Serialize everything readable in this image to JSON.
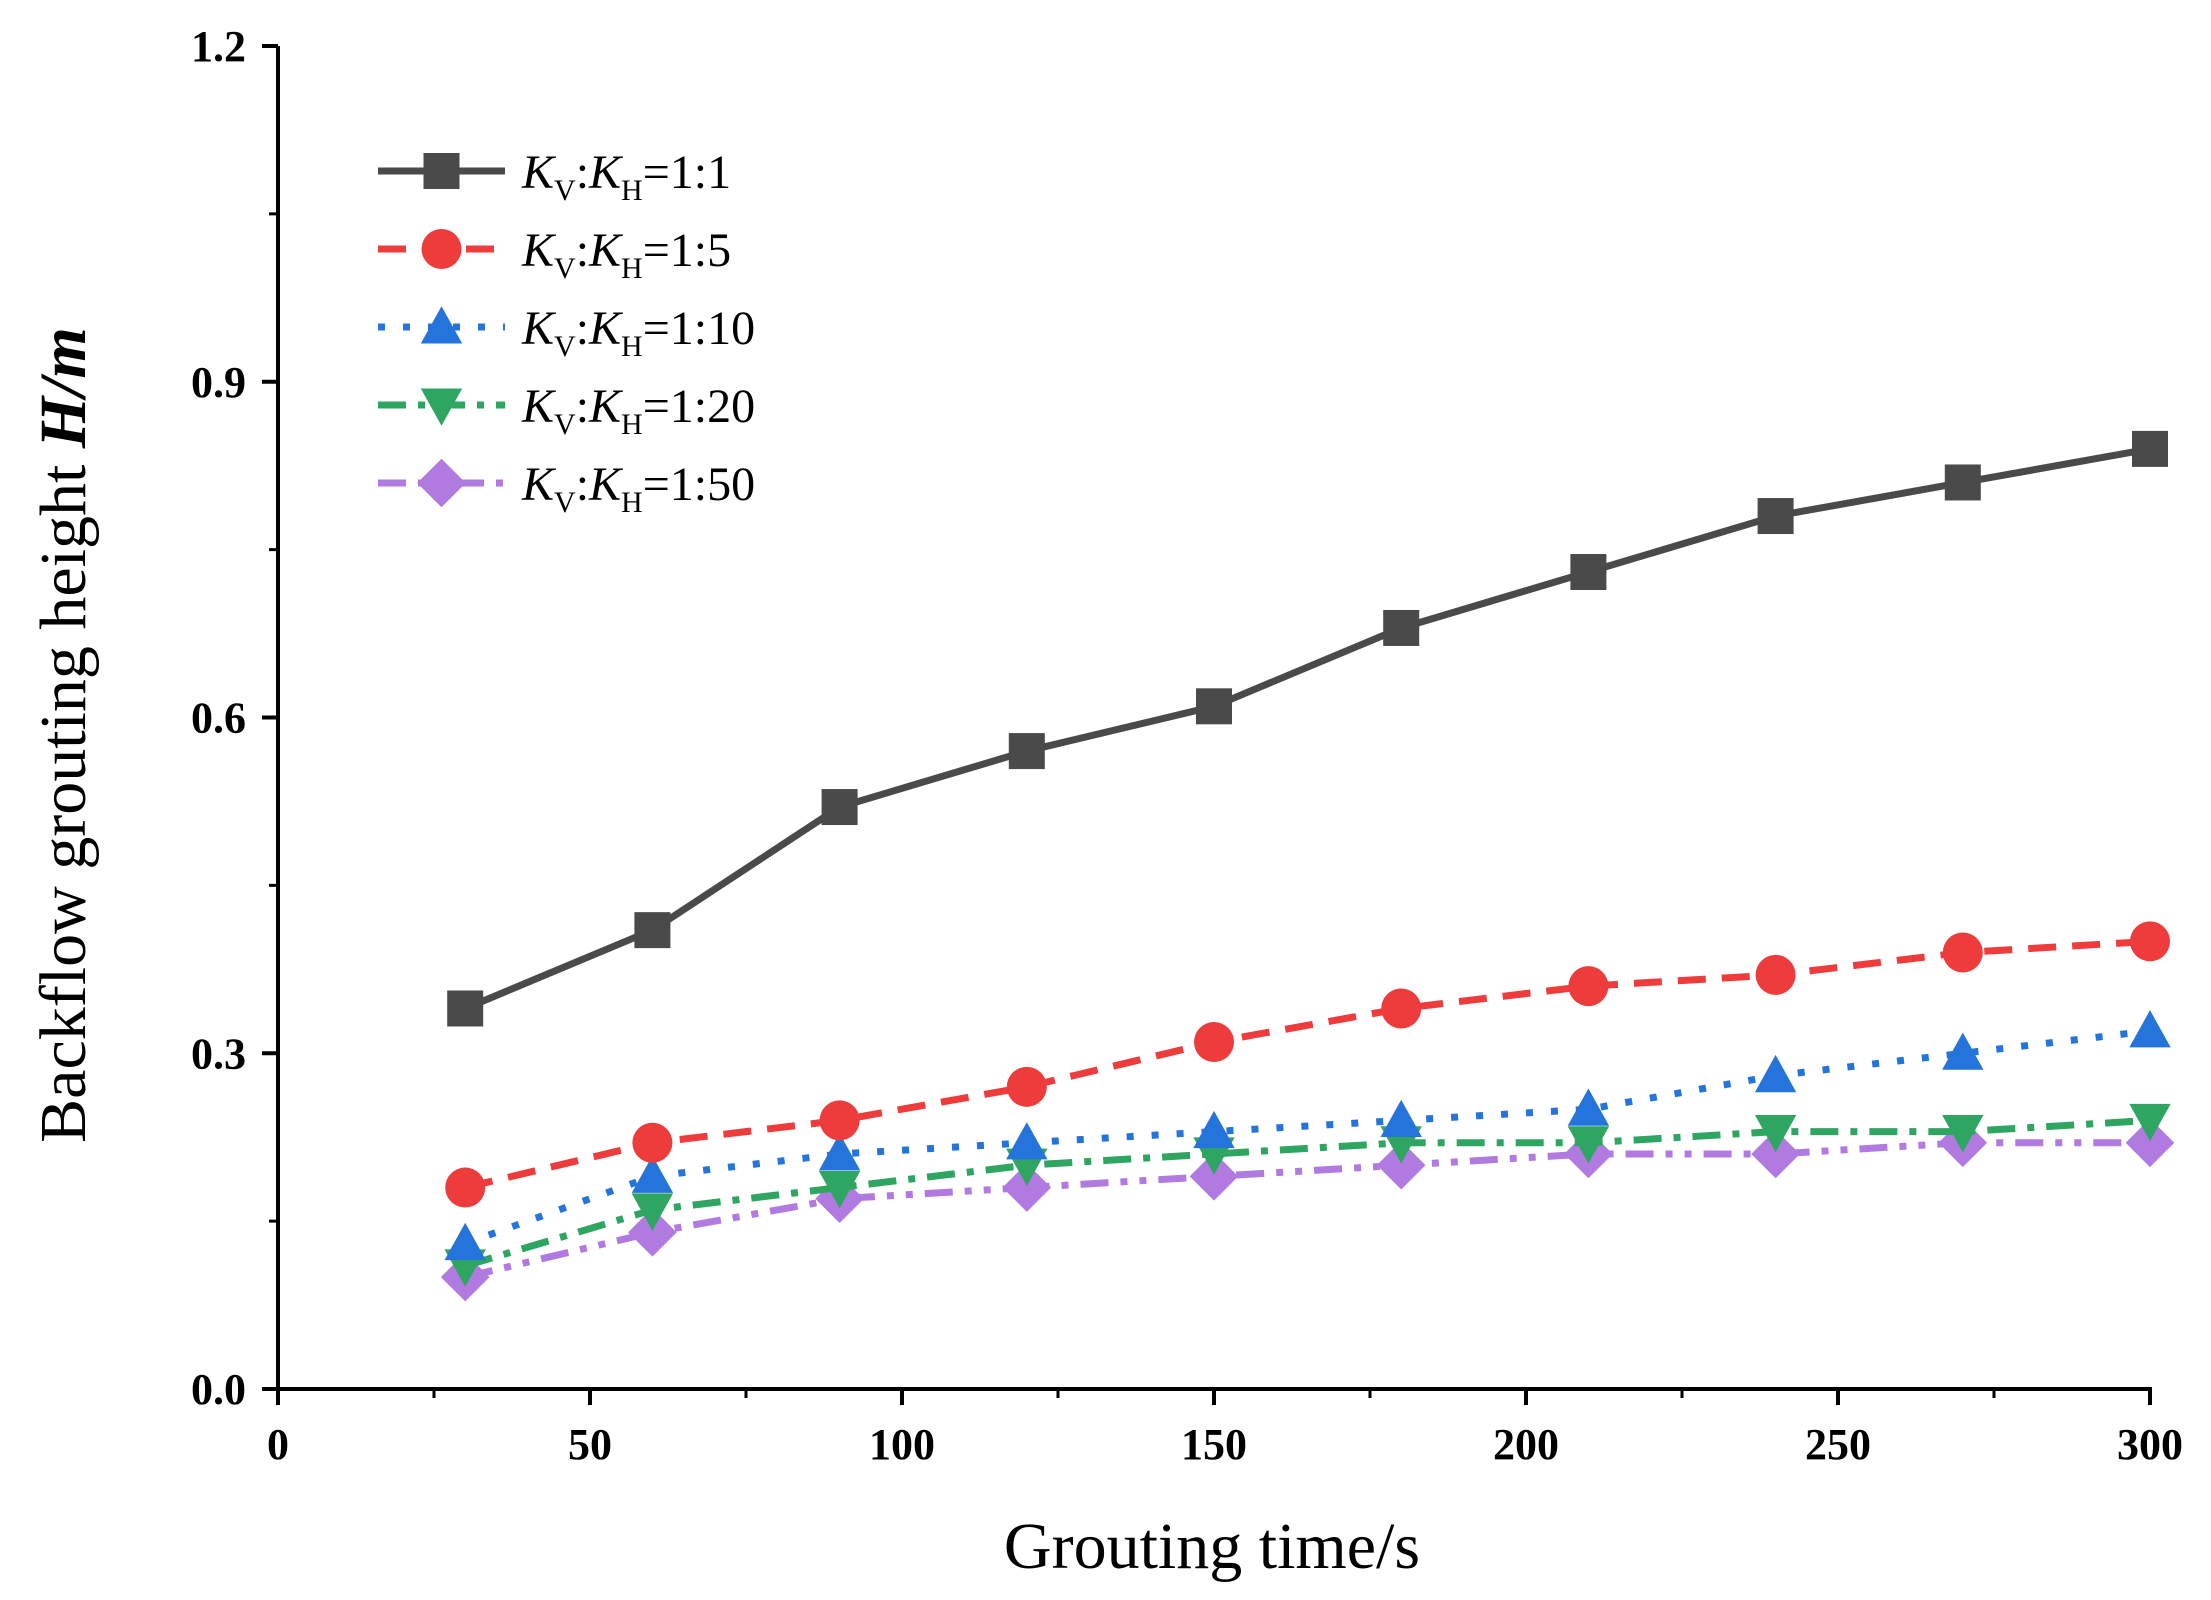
{
  "chart_data": {
    "type": "line",
    "xlabel": "Grouting time/s",
    "ylabel_prefix": "Backflow grouting height ",
    "ylabel_emph": "H/m",
    "xlim": [
      0,
      300
    ],
    "ylim": [
      0,
      1.2
    ],
    "xticks": [
      0,
      50,
      100,
      150,
      200,
      250,
      300
    ],
    "yticks": [
      0.0,
      0.3,
      0.6,
      0.9,
      1.2
    ],
    "ytick_labels": [
      "0.0",
      "0.3",
      "0.6",
      "0.9",
      "1.2"
    ],
    "x": [
      30,
      60,
      90,
      120,
      150,
      180,
      210,
      240,
      270,
      300
    ],
    "legend_position": "top-left",
    "series": [
      {
        "name": "KV:KH=1:1",
        "label_ratio": "=1:1",
        "color": "#4a4a4a",
        "marker": "square",
        "dash": "solid",
        "values": [
          0.34,
          0.41,
          0.52,
          0.57,
          0.61,
          0.68,
          0.73,
          0.78,
          0.81,
          0.84
        ]
      },
      {
        "name": "KV:KH=1:5",
        "label_ratio": "=1:5",
        "color": "#ee3b3b",
        "marker": "circle",
        "dash": "dash",
        "values": [
          0.18,
          0.22,
          0.24,
          0.27,
          0.31,
          0.34,
          0.36,
          0.37,
          0.39,
          0.4
        ]
      },
      {
        "name": "KV:KH=1:10",
        "label_ratio": "=1:10",
        "color": "#2574dc",
        "marker": "triangle-up",
        "dash": "dot",
        "values": [
          0.13,
          0.19,
          0.21,
          0.22,
          0.23,
          0.24,
          0.25,
          0.28,
          0.3,
          0.32
        ]
      },
      {
        "name": "KV:KH=1:20",
        "label_ratio": "=1:20",
        "color": "#2ea561",
        "marker": "triangle-down",
        "dash": "dashdot",
        "values": [
          0.11,
          0.16,
          0.18,
          0.2,
          0.21,
          0.22,
          0.22,
          0.23,
          0.23,
          0.24
        ]
      },
      {
        "name": "KV:KH=1:50",
        "label_ratio": "=1:50",
        "color": "#b07ae0",
        "marker": "diamond",
        "dash": "dashdotdot",
        "values": [
          0.1,
          0.14,
          0.17,
          0.18,
          0.19,
          0.2,
          0.21,
          0.21,
          0.22,
          0.22
        ]
      }
    ]
  }
}
